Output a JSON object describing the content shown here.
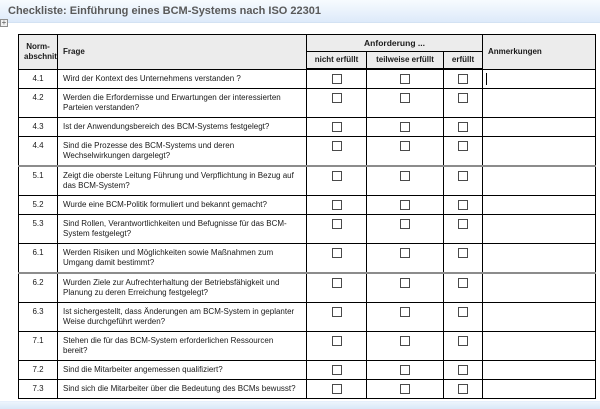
{
  "title": "Checkliste: Einführung eines BCM-Systems nach ISO 22301",
  "icons": {
    "table_move_handle": "+"
  },
  "table": {
    "headers": {
      "norm": "Norm-\nabschnitt",
      "frage": "Frage",
      "anforderung": "Anforderung ...",
      "nicht_erfuellt": "nicht erfüllt",
      "teilweise_erfuellt": "teilweise erfüllt",
      "erfuellt": "erfüllt",
      "anmerkungen": "Anmerkungen"
    },
    "rows": [
      {
        "id": "4.1",
        "frage": "Wird der Kontext des Unternehmens verstanden ?",
        "nicht_erfuellt": false,
        "teilweise_erfuellt": false,
        "erfuellt": false,
        "anmerkung": "",
        "cursor": true,
        "section_break": false
      },
      {
        "id": "4.2",
        "frage": "Werden die Erfordernisse und Erwartungen der interessierten\nParteien verstanden?",
        "nicht_erfuellt": false,
        "teilweise_erfuellt": false,
        "erfuellt": false,
        "anmerkung": "",
        "cursor": false,
        "section_break": false
      },
      {
        "id": "4.3",
        "frage": "Ist der Anwendungsbereich des BCM-Systems festgelegt?",
        "nicht_erfuellt": false,
        "teilweise_erfuellt": false,
        "erfuellt": false,
        "anmerkung": "",
        "cursor": false,
        "section_break": false
      },
      {
        "id": "4.4",
        "frage": "Sind die Prozesse des BCM-Systems und deren\nWechselwirkungen dargelegt?",
        "nicht_erfuellt": false,
        "teilweise_erfuellt": false,
        "erfuellt": false,
        "anmerkung": "",
        "cursor": false,
        "section_break": false
      },
      {
        "id": "5.1",
        "frage": "Zeigt die oberste Leitung Führung und Verpflichtung in Bezug auf\ndas BCM-System?",
        "nicht_erfuellt": false,
        "teilweise_erfuellt": false,
        "erfuellt": false,
        "anmerkung": "",
        "cursor": false,
        "section_break": true
      },
      {
        "id": "5.2",
        "frage": "Wurde eine BCM-Politik formuliert und bekannt gemacht?",
        "nicht_erfuellt": false,
        "teilweise_erfuellt": false,
        "erfuellt": false,
        "anmerkung": "",
        "cursor": false,
        "section_break": false
      },
      {
        "id": "5.3",
        "frage": "Sind Rollen, Verantwortlichkeiten und Befugnisse für das BCM-\nSystem festgelegt?",
        "nicht_erfuellt": false,
        "teilweise_erfuellt": false,
        "erfuellt": false,
        "anmerkung": "",
        "cursor": false,
        "section_break": false
      },
      {
        "id": "6.1",
        "frage": "Werden Risiken und Möglichkeiten sowie Maßnahmen zum\nUmgang damit bestimmt?",
        "nicht_erfuellt": false,
        "teilweise_erfuellt": false,
        "erfuellt": false,
        "anmerkung": "",
        "cursor": false,
        "section_break": false
      },
      {
        "id": "6.2",
        "frage": "Wurden Ziele zur Aufrechterhaltung der Betriebsfähigkeit und\nPlanung zu deren Erreichung festgelegt?",
        "nicht_erfuellt": false,
        "teilweise_erfuellt": false,
        "erfuellt": false,
        "anmerkung": "",
        "cursor": false,
        "section_break": true
      },
      {
        "id": "6.3",
        "frage": "Ist sichergestellt, dass Änderungen am BCM-System in geplanter\nWeise durchgeführt werden?",
        "nicht_erfuellt": false,
        "teilweise_erfuellt": false,
        "erfuellt": false,
        "anmerkung": "",
        "cursor": false,
        "section_break": false
      },
      {
        "id": "7.1",
        "frage": "Stehen die für das BCM-System erforderlichen Ressourcen\nbereit?",
        "nicht_erfuellt": false,
        "teilweise_erfuellt": false,
        "erfuellt": false,
        "anmerkung": "",
        "cursor": false,
        "section_break": false
      },
      {
        "id": "7.2",
        "frage": "Sind die Mitarbeiter angemessen qualifiziert?",
        "nicht_erfuellt": false,
        "teilweise_erfuellt": false,
        "erfuellt": false,
        "anmerkung": "",
        "cursor": false,
        "section_break": false
      },
      {
        "id": "7.3",
        "frage": "Sind sich die Mitarbeiter über die Bedeutung des BCMs bewusst?",
        "nicht_erfuellt": false,
        "teilweise_erfuellt": false,
        "erfuellt": false,
        "anmerkung": "",
        "cursor": false,
        "section_break": false
      }
    ]
  }
}
